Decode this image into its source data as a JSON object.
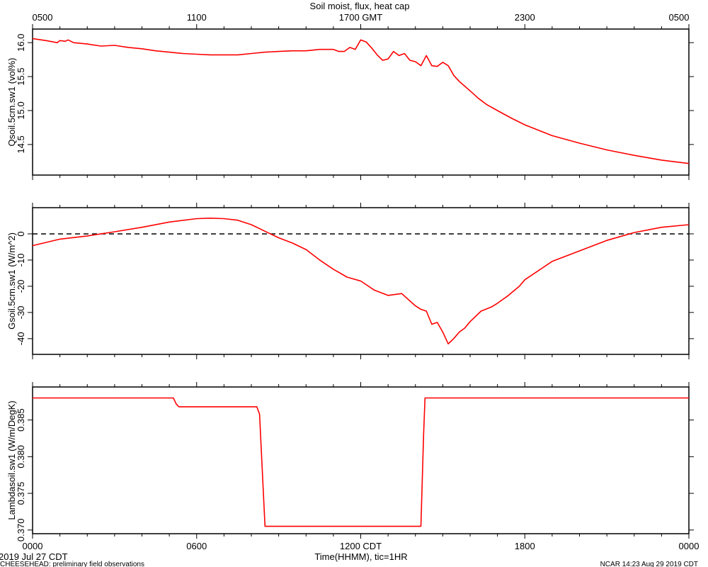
{
  "title": "Soil moist, flux, heat cap",
  "top_axis": {
    "timezone_label": "GMT",
    "tick_labels": [
      "0500",
      "1100",
      "1700 GMT",
      "2300",
      "0500"
    ],
    "tick_hours": [
      0,
      6,
      12,
      18,
      24
    ]
  },
  "bottom_axis": {
    "tick_labels": [
      "0000",
      "0600",
      "1200 CDT",
      "1800",
      "0000"
    ],
    "tick_hours": [
      0,
      6,
      12,
      18,
      24
    ],
    "xlabel": "Time(HHMM), tic=1HR"
  },
  "footer": {
    "date_left": "2019 Jul 27 CDT",
    "project": "CHEESEHEAD: preliminary field observations",
    "credit": "NCAR 14:23 Aug 29 2019 CDT"
  },
  "colors": {
    "series": "#ff0000",
    "axes": "#000000",
    "zero_line": "#000000"
  },
  "chart_data": [
    {
      "type": "line",
      "ylabel": "Qsoil.5cm.sw1 (vol%)",
      "xlim": [
        0,
        24
      ],
      "ylim": [
        14.05,
        16.2
      ],
      "yticks": [
        14.5,
        15.0,
        15.5,
        16.0
      ],
      "ytick_labels": [
        "14.5",
        "15.0",
        "15.5",
        "16.0"
      ],
      "series": [
        {
          "x": [
            0,
            0.5,
            0.9,
            1.0,
            1.2,
            1.3,
            1.5,
            2,
            2.5,
            3,
            3.5,
            4,
            4.5,
            5,
            5.5,
            6,
            6.5,
            7,
            7.5,
            8,
            8.5,
            9,
            9.5,
            10,
            10.5,
            11,
            11.2,
            11.4,
            11.6,
            11.8,
            12.0,
            12.2,
            12.4,
            12.6,
            12.8,
            13.0,
            13.2,
            13.4,
            13.6,
            13.8,
            14.0,
            14.2,
            14.4,
            14.6,
            14.8,
            15.0,
            15.2,
            15.4,
            15.6,
            15.8,
            16.0,
            16.3,
            16.6,
            17.0,
            17.5,
            18.0,
            18.5,
            19.0,
            20.0,
            21.0,
            22.0,
            23.0,
            24.0
          ],
          "y": [
            16.06,
            16.03,
            16.0,
            16.03,
            16.02,
            16.04,
            16.0,
            15.98,
            15.95,
            15.96,
            15.93,
            15.91,
            15.88,
            15.86,
            15.84,
            15.83,
            15.82,
            15.82,
            15.82,
            15.84,
            15.86,
            15.87,
            15.88,
            15.88,
            15.9,
            15.9,
            15.87,
            15.87,
            15.93,
            15.9,
            16.04,
            16.01,
            15.92,
            15.82,
            15.74,
            15.76,
            15.87,
            15.81,
            15.84,
            15.74,
            15.72,
            15.66,
            15.81,
            15.66,
            15.65,
            15.71,
            15.66,
            15.52,
            15.43,
            15.36,
            15.29,
            15.18,
            15.09,
            15.0,
            14.89,
            14.79,
            14.71,
            14.63,
            14.52,
            14.42,
            14.34,
            14.27,
            14.22
          ]
        }
      ]
    },
    {
      "type": "line",
      "ylabel": "Gsoil.5cm.sw1 (W/m^2)",
      "xlim": [
        0,
        24
      ],
      "ylim": [
        -46,
        10
      ],
      "yticks": [
        -40,
        -30,
        -20,
        -10,
        0
      ],
      "ytick_labels": [
        "-40",
        "-30",
        "-20",
        "-10",
        "0"
      ],
      "zero_line": 0,
      "series": [
        {
          "x": [
            0,
            1,
            2,
            3,
            4,
            5,
            6,
            6.5,
            7,
            7.5,
            8,
            8.5,
            9,
            9.5,
            10,
            10.5,
            11,
            11.5,
            12,
            12.5,
            13,
            13.5,
            14,
            14.2,
            14.4,
            14.6,
            14.8,
            15.0,
            15.2,
            15.4,
            15.6,
            15.8,
            16.0,
            16.4,
            16.8,
            17.0,
            17.4,
            17.8,
            18,
            19,
            20,
            21,
            22,
            23,
            24
          ],
          "y": [
            -4.5,
            -2,
            -0.8,
            0.8,
            2.5,
            4.5,
            5.8,
            6.0,
            5.8,
            5.2,
            3.5,
            1.0,
            -1.5,
            -3.5,
            -6.0,
            -10,
            -13.5,
            -16.5,
            -18,
            -21.5,
            -23.5,
            -22.8,
            -27.5,
            -28.8,
            -29.5,
            -34.5,
            -33.8,
            -37.5,
            -42,
            -40,
            -37.5,
            -36,
            -33.5,
            -29.5,
            -27.8,
            -26.5,
            -23.5,
            -20,
            -17.5,
            -10.5,
            -6.5,
            -2.5,
            0.5,
            2.5,
            3.5
          ]
        }
      ]
    },
    {
      "type": "line",
      "ylabel": "Lambdasoil.sw1 (W/m/DegK)",
      "xlim": [
        0,
        24
      ],
      "ylim": [
        0.3695,
        0.3895
      ],
      "yticks": [
        0.37,
        0.375,
        0.38,
        0.385
      ],
      "ytick_labels": [
        "0.370",
        "0.375",
        "0.380",
        "0.385"
      ],
      "series": [
        {
          "x": [
            0,
            5.15,
            5.25,
            5.35,
            8.2,
            8.3,
            8.5,
            14.2,
            14.3,
            14.35,
            24
          ],
          "y": [
            0.388,
            0.388,
            0.3872,
            0.3868,
            0.3868,
            0.3858,
            0.3705,
            0.3705,
            0.383,
            0.388,
            0.388
          ]
        }
      ]
    }
  ]
}
